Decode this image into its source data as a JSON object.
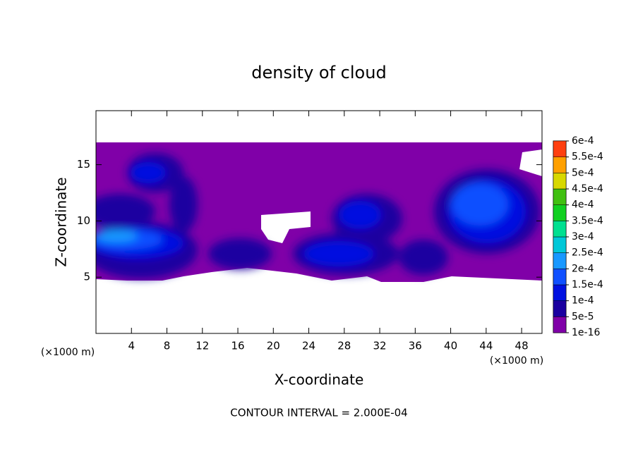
{
  "chart_data": {
    "type": "contour",
    "title": "density of cloud",
    "x_label": "X-coordinate",
    "y_label": "Z-coordinate",
    "x_units": "(×1000 m)",
    "footer": "CONTOUR INTERVAL = 2.000E-04",
    "xlim": [
      0,
      50.3
    ],
    "xticks": [
      4,
      8,
      12,
      16,
      20,
      24,
      28,
      32,
      36,
      40,
      44,
      48
    ],
    "ylim": [
      0,
      19.8
    ],
    "yticks": [
      5,
      10,
      15
    ],
    "colorbar": {
      "levels": [
        {
          "value": 1e-16,
          "label": "1e-16"
        },
        {
          "value": 5e-05,
          "label": "5e-5"
        },
        {
          "value": 0.0001,
          "label": "1e-4"
        },
        {
          "value": 0.00015,
          "label": "1.5e-4"
        },
        {
          "value": 0.0002,
          "label": "2e-4"
        },
        {
          "value": 0.00025,
          "label": "2.5e-4"
        },
        {
          "value": 0.0003,
          "label": "3e-4"
        },
        {
          "value": 0.00035,
          "label": "3.5e-4"
        },
        {
          "value": 0.0004,
          "label": "4e-4"
        },
        {
          "value": 0.00045,
          "label": "4.5e-4"
        },
        {
          "value": 0.0005,
          "label": "5e-4"
        },
        {
          "value": 0.00055,
          "label": "5.5e-4"
        },
        {
          "value": 0.0006,
          "label": "6e-4"
        }
      ],
      "colors": [
        "#8000a8",
        "#1a00a0",
        "#0010e0",
        "#1050ff",
        "#1898ff",
        "#00c8d8",
        "#00e090",
        "#10d020",
        "#40c010",
        "#d8d800",
        "#ffa000",
        "#ff4010"
      ]
    }
  }
}
